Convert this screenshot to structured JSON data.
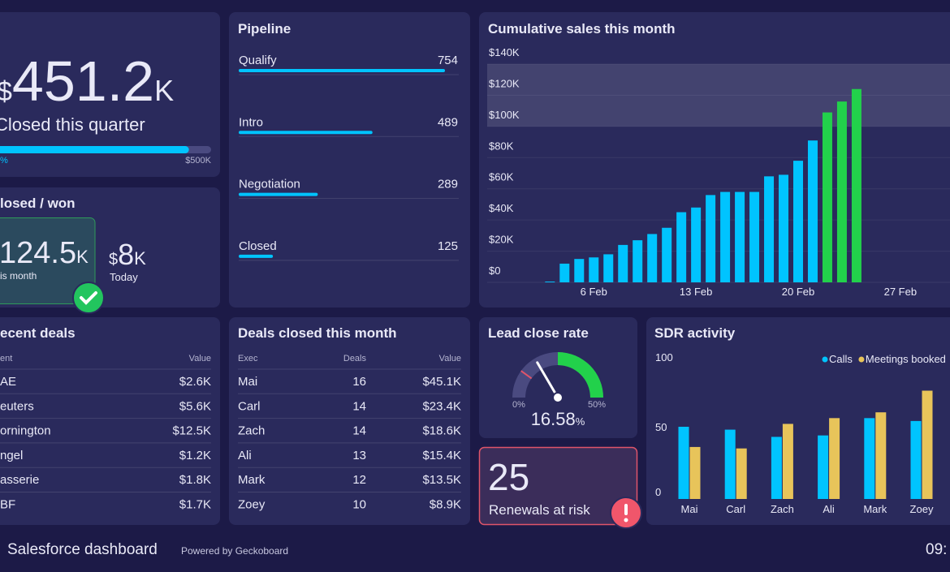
{
  "quarter": {
    "prefix": "$",
    "value": 451.2,
    "suffix": "K",
    "label": "Closed this quarter",
    "progress_label": "%",
    "max": {
      "value": 500,
      "label": "$500K"
    }
  },
  "closed_won": {
    "title": "losed / won",
    "this_month": {
      "value": 124.5,
      "suffix": "K",
      "label": "is month"
    },
    "today": {
      "prefix": "$",
      "value": 8,
      "suffix": "K",
      "label": "Today"
    }
  },
  "pipeline": {
    "title": "Pipeline",
    "color": "#00c4ff",
    "stages": [
      {
        "name": "Qualify",
        "value": 754
      },
      {
        "name": "Intro",
        "value": 489
      },
      {
        "name": "Negotiation",
        "value": 289
      },
      {
        "name": "Closed",
        "value": 125
      }
    ]
  },
  "chart_data": [
    {
      "type": "bar",
      "title": "Cumulative sales this month",
      "xlim": [
        -1.3,
        30.4
      ],
      "ylim": [
        0,
        140
      ],
      "xticks": [
        {
          "value": 6,
          "label": "6 Feb"
        },
        {
          "value": 13,
          "label": "13 Feb"
        },
        {
          "value": 20,
          "label": "20 Feb"
        },
        {
          "value": 27,
          "label": "27 Feb"
        }
      ],
      "yticks": [
        {
          "value": 0,
          "label": "$0"
        },
        {
          "value": 20,
          "label": "$20K"
        },
        {
          "value": 40,
          "label": "$40K"
        },
        {
          "value": 60,
          "label": "$60K"
        },
        {
          "value": 80,
          "label": "$80K"
        },
        {
          "value": 100,
          "label": "$100K"
        },
        {
          "value": 120,
          "label": "$120K"
        },
        {
          "value": 140,
          "label": "$140K"
        }
      ],
      "target_band": [
        100,
        140
      ],
      "grid": true,
      "series": [
        {
          "color": "#00c4ff",
          "x": [
            3,
            4,
            5,
            6,
            7,
            8,
            9,
            10,
            11,
            12,
            13,
            14,
            15,
            16,
            17,
            18,
            19,
            20,
            21
          ],
          "values": [
            0.5,
            12,
            15,
            16,
            18,
            24,
            27,
            31,
            35,
            45,
            48,
            56,
            58,
            58,
            58,
            68,
            69,
            78,
            91
          ]
        },
        {
          "color": "#22d14b",
          "x": [
            22,
            23,
            24
          ],
          "values": [
            109,
            116,
            124
          ]
        }
      ]
    },
    {
      "type": "gauge",
      "title": "Lead close rate",
      "value": 16.58,
      "unit": "%",
      "lim": [
        0,
        50
      ],
      "ticks": [
        {
          "value": 0,
          "label": "0%"
        },
        {
          "value": 50,
          "label": "50%"
        }
      ],
      "bands": [
        {
          "from": 25,
          "to": 50,
          "color": "#22d14b"
        }
      ],
      "marker": {
        "value": 10,
        "color": "#e0556a"
      }
    },
    {
      "type": "bar",
      "title": "SDR activity",
      "categories": [
        "Mai",
        "Carl",
        "Zach",
        "Ali",
        "Mark",
        "Zoey"
      ],
      "ylim": [
        0,
        100
      ],
      "yticks": [
        0,
        50,
        100
      ],
      "legend": "top-right",
      "series": [
        {
          "name": "Calls",
          "color": "#00c4ff",
          "values": [
            50,
            48,
            43,
            44,
            56,
            54
          ]
        },
        {
          "name": "Meetings booked",
          "color": "#e8c45a",
          "values": [
            36,
            35,
            52,
            56,
            60,
            75
          ]
        }
      ]
    }
  ],
  "recent_deals": {
    "title": "ecent deals",
    "columns": [
      "ent",
      "Value"
    ],
    "rows": [
      [
        "AE",
        "$2.6K"
      ],
      [
        "euters",
        "$5.6K"
      ],
      [
        "ornington",
        "$12.5K"
      ],
      [
        "ngel",
        "$1.2K"
      ],
      [
        "asserie",
        "$1.8K"
      ],
      [
        "BF",
        "$1.7K"
      ]
    ]
  },
  "deals_closed": {
    "title": "Deals closed this month",
    "columns": [
      "Exec",
      "Deals",
      "Value"
    ],
    "rows": [
      [
        "Mai",
        16,
        "$45.1K"
      ],
      [
        "Carl",
        14,
        "$23.4K"
      ],
      [
        "Zach",
        14,
        "$18.6K"
      ],
      [
        "Ali",
        13,
        "$15.4K"
      ],
      [
        "Mark",
        12,
        "$13.5K"
      ],
      [
        "Zoey",
        10,
        "$8.9K"
      ]
    ]
  },
  "renewals": {
    "value": 25,
    "label": "Renewals at risk"
  },
  "footer": {
    "title": "Salesforce dashboard",
    "powered_by": "Powered by Geckoboard",
    "time": "09:"
  }
}
